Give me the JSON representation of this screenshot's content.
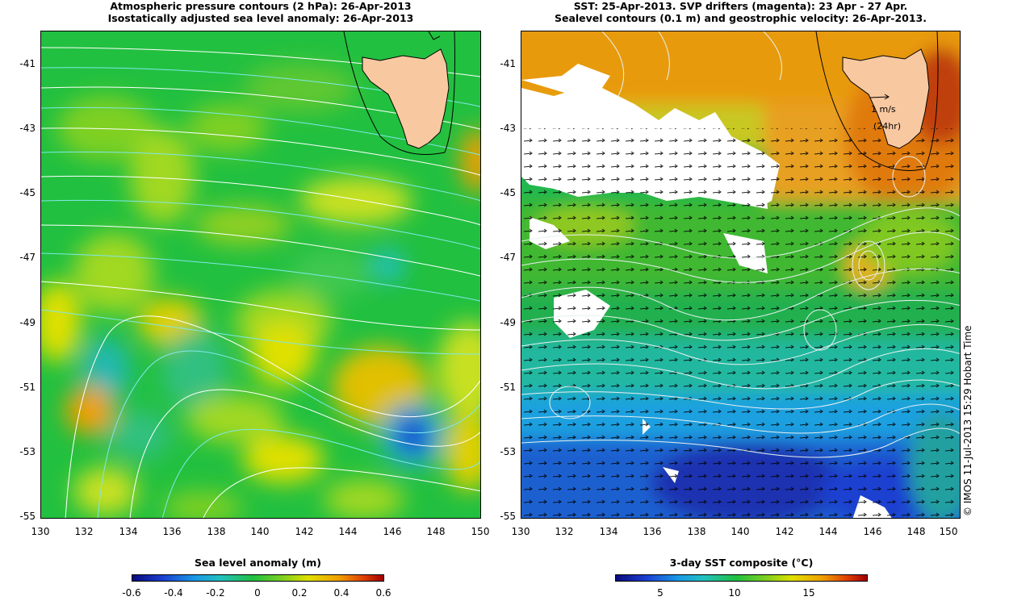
{
  "left_panel": {
    "title_line1": "Atmospheric pressure contours (2 hPa): 26-Apr-2013",
    "title_line2": "Isostatically adjusted sea level anomaly: 26-Apr-2013",
    "y_ticks": [
      "-41",
      "-43",
      "-45",
      "-47",
      "-49",
      "-51",
      "-53",
      "-55"
    ],
    "x_ticks": [
      "130",
      "132",
      "134",
      "136",
      "138",
      "140",
      "142",
      "144",
      "146",
      "148",
      "150"
    ],
    "colorbar_title": "Sea level anomaly (m)",
    "colorbar_ticks": [
      "-0.6",
      "-0.4",
      "-0.2",
      "0",
      "0.2",
      "0.4",
      "0.6"
    ],
    "colorbar_range": [
      -0.6,
      0.6
    ]
  },
  "right_panel": {
    "title_line1": "SST: 25-Apr-2013. SVP drifters (magenta): 23 Apr - 27 Apr.",
    "title_line2": "Sealevel contours (0.1 m) and geostrophic velocity: 26-Apr-2013.",
    "y_ticks": [
      "-41",
      "-43",
      "-45",
      "-47",
      "-49",
      "-51",
      "-53",
      "-55"
    ],
    "x_ticks": [
      "130",
      "132",
      "134",
      "136",
      "138",
      "140",
      "142",
      "144",
      "146",
      "148",
      "150"
    ],
    "colorbar_title": "3-day SST composite (°C)",
    "colorbar_ticks": [
      "5",
      "10",
      "15"
    ],
    "colorbar_range": [
      2,
      19
    ],
    "velocity_scale_label": "1 m/s",
    "velocity_scale_sub": "(24hr)"
  },
  "map_extent": {
    "lon": [
      130,
      150
    ],
    "lat": [
      -55,
      -40
    ]
  },
  "credit": "© IMOS 11-Jul-2013 15:29 Hobart Time",
  "colors": {
    "land": "#f8c8a0",
    "cold": "#1a3fd0",
    "mid": "#20c040",
    "warm": "#f0a000",
    "contour_pressure": "#7fe8e8",
    "contour_sealevel": "#ffffff"
  }
}
